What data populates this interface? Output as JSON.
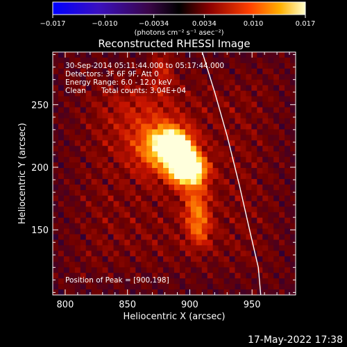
{
  "chart_data": {
    "type": "heatmap",
    "title": "Reconstructed RHESSI Image",
    "xlabel": "Heliocentric X (arcsec)",
    "ylabel": "Heliocentric Y (arcsec)",
    "xlim": [
      790,
      985
    ],
    "ylim": [
      98,
      292
    ],
    "x_ticks": [
      800,
      850,
      900,
      950
    ],
    "y_ticks": [
      150,
      200,
      250
    ],
    "colorbar": {
      "label": "(photons cm⁻² s⁻¹ asec⁻²)",
      "range": [
        -0.017,
        0.017
      ],
      "tick_labels": [
        "−0.017",
        "−0.010",
        "−0.0034",
        "0.0034",
        "0.010",
        "0.017"
      ],
      "tick_values": [
        -0.017,
        -0.01,
        -0.0034,
        0.0034,
        0.01,
        0.017
      ]
    },
    "annotations": {
      "time_range": "30-Sep-2014 05:11:44.000 to 05:17:44.000",
      "detectors": "Detectors: 3F 6F 9F, Att 0",
      "energy_range": "Energy Range: 6.0 - 12.0 keV",
      "clean_label": "Clean",
      "total_counts": "Total counts: 3.04E+04",
      "peak_position": "Position of Peak = [900,198]"
    },
    "peak": {
      "x": 900,
      "y": 198
    },
    "limb_curve": [
      {
        "x": 910,
        "y": 292
      },
      {
        "x": 920,
        "y": 260
      },
      {
        "x": 930,
        "y": 225
      },
      {
        "x": 940,
        "y": 185
      },
      {
        "x": 948,
        "y": 150
      },
      {
        "x": 955,
        "y": 120
      },
      {
        "x": 957,
        "y": 98
      }
    ],
    "emission_sources": [
      {
        "x": 900,
        "y": 198,
        "amp": 1.0,
        "sx": 9,
        "sy": 8
      },
      {
        "x": 886,
        "y": 218,
        "amp": 0.85,
        "sx": 10,
        "sy": 9
      },
      {
        "x": 893,
        "y": 205,
        "amp": 0.8,
        "sx": 8,
        "sy": 10
      },
      {
        "x": 875,
        "y": 215,
        "amp": 0.45,
        "sx": 14,
        "sy": 14
      },
      {
        "x": 905,
        "y": 170,
        "amp": 0.4,
        "sx": 7,
        "sy": 14
      },
      {
        "x": 908,
        "y": 150,
        "amp": 0.3,
        "sx": 6,
        "sy": 10
      },
      {
        "x": 878,
        "y": 280,
        "amp": 0.3,
        "sx": 6,
        "sy": 12
      },
      {
        "x": 860,
        "y": 240,
        "amp": 0.15,
        "sx": 20,
        "sy": 20
      }
    ]
  },
  "footer": {
    "timestamp": "17-May-2022 17:38"
  },
  "colors": {
    "background": "#000000",
    "text": "#ffffff",
    "limb": "#ffffff"
  }
}
